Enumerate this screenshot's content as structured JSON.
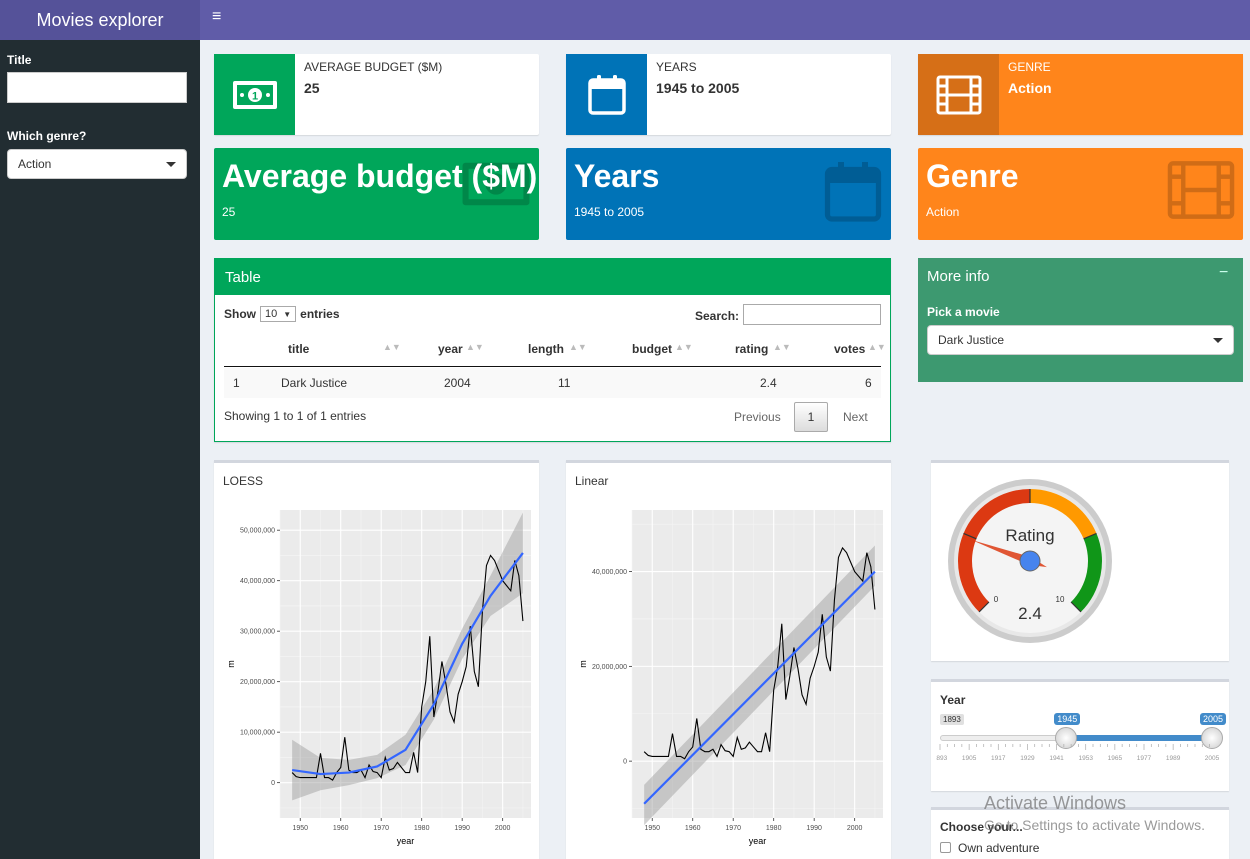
{
  "header": {
    "brand": "Movies explorer"
  },
  "sidebar": {
    "title_label": "Title",
    "title_value": "",
    "genre_label": "Which genre?",
    "genre_value": "Action"
  },
  "infoboxes": [
    {
      "label": "AVERAGE BUDGET ($M)",
      "value": "25",
      "icon": "money-icon",
      "color": "#00a65a"
    },
    {
      "label": "YEARS",
      "value": "1945 to 2005",
      "icon": "calendar-icon",
      "color": "#0073b7"
    },
    {
      "label": "GENRE",
      "value": "Action",
      "icon": "film-icon",
      "color": "#ff851b"
    }
  ],
  "valueboxes": [
    {
      "title": "Average budget ($M)",
      "sub": "25",
      "color": "#00a65a",
      "icon": "money-icon"
    },
    {
      "title": "Years",
      "sub": "1945 to 2005",
      "color": "#0073b7",
      "icon": "calendar-icon"
    },
    {
      "title": "Genre",
      "sub": "Action",
      "color": "#ff851b",
      "icon": "film-icon"
    }
  ],
  "table": {
    "title": "Table",
    "show": "Show",
    "length": "10",
    "entries": "entries",
    "search_label": "Search:",
    "columns": [
      "",
      "title",
      "year",
      "length",
      "budget",
      "rating",
      "votes"
    ],
    "rows": [
      [
        "1",
        "Dark Justice",
        "2004",
        "11",
        "",
        "2.4",
        "6"
      ]
    ],
    "info": "Showing 1 to 1 of 1 entries",
    "prev": "Previous",
    "page": "1",
    "next": "Next"
  },
  "more_info": {
    "title": "More info",
    "collapse": "−",
    "pick_label": "Pick a movie",
    "pick_value": "Dark Justice"
  },
  "loess": {
    "title": "LOESS",
    "xlabel": "year",
    "ylabel": "m"
  },
  "linear": {
    "title": "Linear",
    "xlabel": "year",
    "ylabel": "m"
  },
  "gauge": {
    "label": "Rating",
    "value": "2.4",
    "min": "0",
    "max": "10",
    "value_num": 2.4
  },
  "year_slider": {
    "label": "Year",
    "min": "1893",
    "from": "1945",
    "to": "2005",
    "ticks": [
      "1893",
      "1905",
      "1917",
      "1929",
      "1941",
      "1953",
      "1965",
      "1977",
      "1989",
      "2005"
    ]
  },
  "choose": {
    "label": "Choose your...",
    "option": "Own adventure"
  },
  "watermark": {
    "line1": "Activate Windows",
    "line2": "Go to Settings to activate Windows."
  },
  "chart_data": [
    {
      "type": "line",
      "title": "LOESS",
      "xlabel": "year",
      "ylabel": "m",
      "xlim": [
        1945,
        2007
      ],
      "ylim": [
        -7000000,
        54000000
      ],
      "xticks": [
        1950,
        1960,
        1970,
        1980,
        1990,
        2000
      ],
      "yticks": [
        0,
        10000000,
        20000000,
        30000000,
        40000000,
        50000000
      ],
      "ytick_labels": [
        "0",
        "10,000,000",
        "20,000,000",
        "30,000,000",
        "40,000,000",
        "50,000,000"
      ],
      "series": [
        {
          "kind": "raw",
          "x": [
            1948,
            1949,
            1950,
            1951,
            1952,
            1953,
            1954,
            1955,
            1956,
            1957,
            1958,
            1959,
            1960,
            1961,
            1962,
            1963,
            1964,
            1965,
            1966,
            1967,
            1968,
            1969,
            1970,
            1971,
            1972,
            1973,
            1974,
            1975,
            1976,
            1977,
            1978,
            1979,
            1980,
            1981,
            1982,
            1983,
            1984,
            1985,
            1986,
            1987,
            1988,
            1989,
            1990,
            1991,
            1992,
            1993,
            1994,
            1995,
            1996,
            1997,
            1998,
            1999,
            2000,
            2001,
            2002,
            2003,
            2004,
            2005
          ],
          "y": [
            2000000,
            1200000,
            1000000,
            1000000,
            1000000,
            1000000,
            1000000,
            5800000,
            1000000,
            1000000,
            500000,
            2000000,
            3000000,
            9000000,
            2500000,
            2000000,
            2000000,
            2500000,
            1000000,
            3500000,
            2200000,
            2000000,
            1000000,
            5000000,
            2500000,
            2800000,
            4000000,
            3000000,
            2000000,
            2000000,
            6000000,
            2000000,
            15000000,
            20000000,
            29000000,
            13000000,
            18000000,
            24000000,
            19500000,
            14000000,
            12000000,
            17500000,
            20000000,
            23000000,
            31000000,
            22000000,
            19000000,
            34000000,
            43000000,
            45000000,
            44000000,
            42000000,
            40000000,
            39000000,
            38000000,
            44000000,
            41000000,
            32000000
          ]
        },
        {
          "kind": "smooth",
          "x": [
            1948,
            1955,
            1962,
            1969,
            1976,
            1983,
            1990,
            1997,
            2005
          ],
          "y": [
            2500000,
            1700000,
            2000000,
            3200000,
            6500000,
            15500000,
            27500000,
            37000000,
            45500000
          ],
          "band_lower": [
            -3500000,
            -1500000,
            -500000,
            900000,
            3500000,
            12500000,
            24500000,
            33000000,
            37500000
          ],
          "band_upper": [
            8500000,
            4900000,
            4500000,
            5500000,
            9500000,
            18500000,
            30500000,
            41000000,
            53500000
          ]
        }
      ]
    },
    {
      "type": "line",
      "title": "Linear",
      "xlabel": "year",
      "ylabel": "m",
      "xlim": [
        1945,
        2007
      ],
      "ylim": [
        -12000000,
        53000000
      ],
      "xticks": [
        1950,
        1960,
        1970,
        1980,
        1990,
        2000
      ],
      "yticks": [
        0,
        20000000,
        40000000
      ],
      "ytick_labels": [
        "0",
        "20,000,000",
        "40,000,000"
      ],
      "series": [
        {
          "kind": "raw",
          "x": [
            1948,
            1949,
            1950,
            1951,
            1952,
            1953,
            1954,
            1955,
            1956,
            1957,
            1958,
            1959,
            1960,
            1961,
            1962,
            1963,
            1964,
            1965,
            1966,
            1967,
            1968,
            1969,
            1970,
            1971,
            1972,
            1973,
            1974,
            1975,
            1976,
            1977,
            1978,
            1979,
            1980,
            1981,
            1982,
            1983,
            1984,
            1985,
            1986,
            1987,
            1988,
            1989,
            1990,
            1991,
            1992,
            1993,
            1994,
            1995,
            1996,
            1997,
            1998,
            1999,
            2000,
            2001,
            2002,
            2003,
            2004,
            2005
          ],
          "y": [
            2000000,
            1200000,
            1000000,
            1000000,
            1000000,
            1000000,
            1000000,
            5800000,
            1000000,
            1000000,
            500000,
            2000000,
            3000000,
            9000000,
            2500000,
            2000000,
            2000000,
            2500000,
            1000000,
            3500000,
            2200000,
            2000000,
            1000000,
            5000000,
            2500000,
            2800000,
            4000000,
            3000000,
            2000000,
            2000000,
            6000000,
            2000000,
            15000000,
            20000000,
            29000000,
            13000000,
            18000000,
            24000000,
            19500000,
            14000000,
            12000000,
            17500000,
            20000000,
            23000000,
            31000000,
            22000000,
            19000000,
            34000000,
            43000000,
            45000000,
            44000000,
            42000000,
            40000000,
            39000000,
            38000000,
            44000000,
            41000000,
            32000000
          ]
        },
        {
          "kind": "smooth",
          "x": [
            1948,
            2005
          ],
          "y": [
            -9000000,
            40000000
          ],
          "band_lower": [
            -13500000,
            37000000
          ],
          "band_upper": [
            -5000000,
            45500000
          ]
        }
      ]
    }
  ]
}
